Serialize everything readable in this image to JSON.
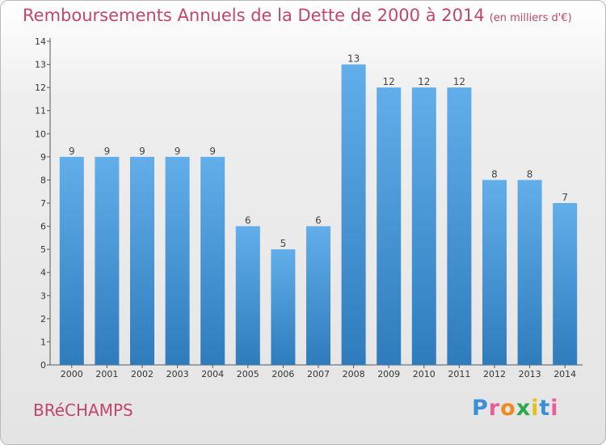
{
  "page": {
    "title": "Remboursements Annuels de la Dette de 2000 à 2014",
    "unit": "(en milliers d'€)",
    "commune": "BRéCHAMPS",
    "logo": "Proxiti"
  },
  "colors": {
    "title": "#c2456a",
    "bar_top": "#62aeea",
    "bar_bottom": "#2f7cbd",
    "logo_letters": [
      "#3b8fd6",
      "#e85e9a",
      "#f08a1e",
      "#2aa84a",
      "#e0c21a",
      "#3b8fd6",
      "#e85e9a"
    ]
  },
  "chart_data": {
    "type": "bar",
    "title": "Remboursements Annuels de la Dette de 2000 à 2014",
    "categories": [
      "2000",
      "2001",
      "2002",
      "2003",
      "2004",
      "2005",
      "2006",
      "2007",
      "2008",
      "2009",
      "2010",
      "2011",
      "2012",
      "2013",
      "2014"
    ],
    "values": [
      9,
      9,
      9,
      9,
      9,
      6,
      5,
      6,
      13,
      12,
      12,
      12,
      8,
      8,
      7
    ],
    "ylim": [
      0,
      14
    ],
    "yticks": [
      0,
      1,
      2,
      3,
      4,
      5,
      6,
      7,
      8,
      9,
      10,
      11,
      12,
      13,
      14
    ],
    "data_labels": true,
    "grid": false,
    "legend": "none"
  }
}
